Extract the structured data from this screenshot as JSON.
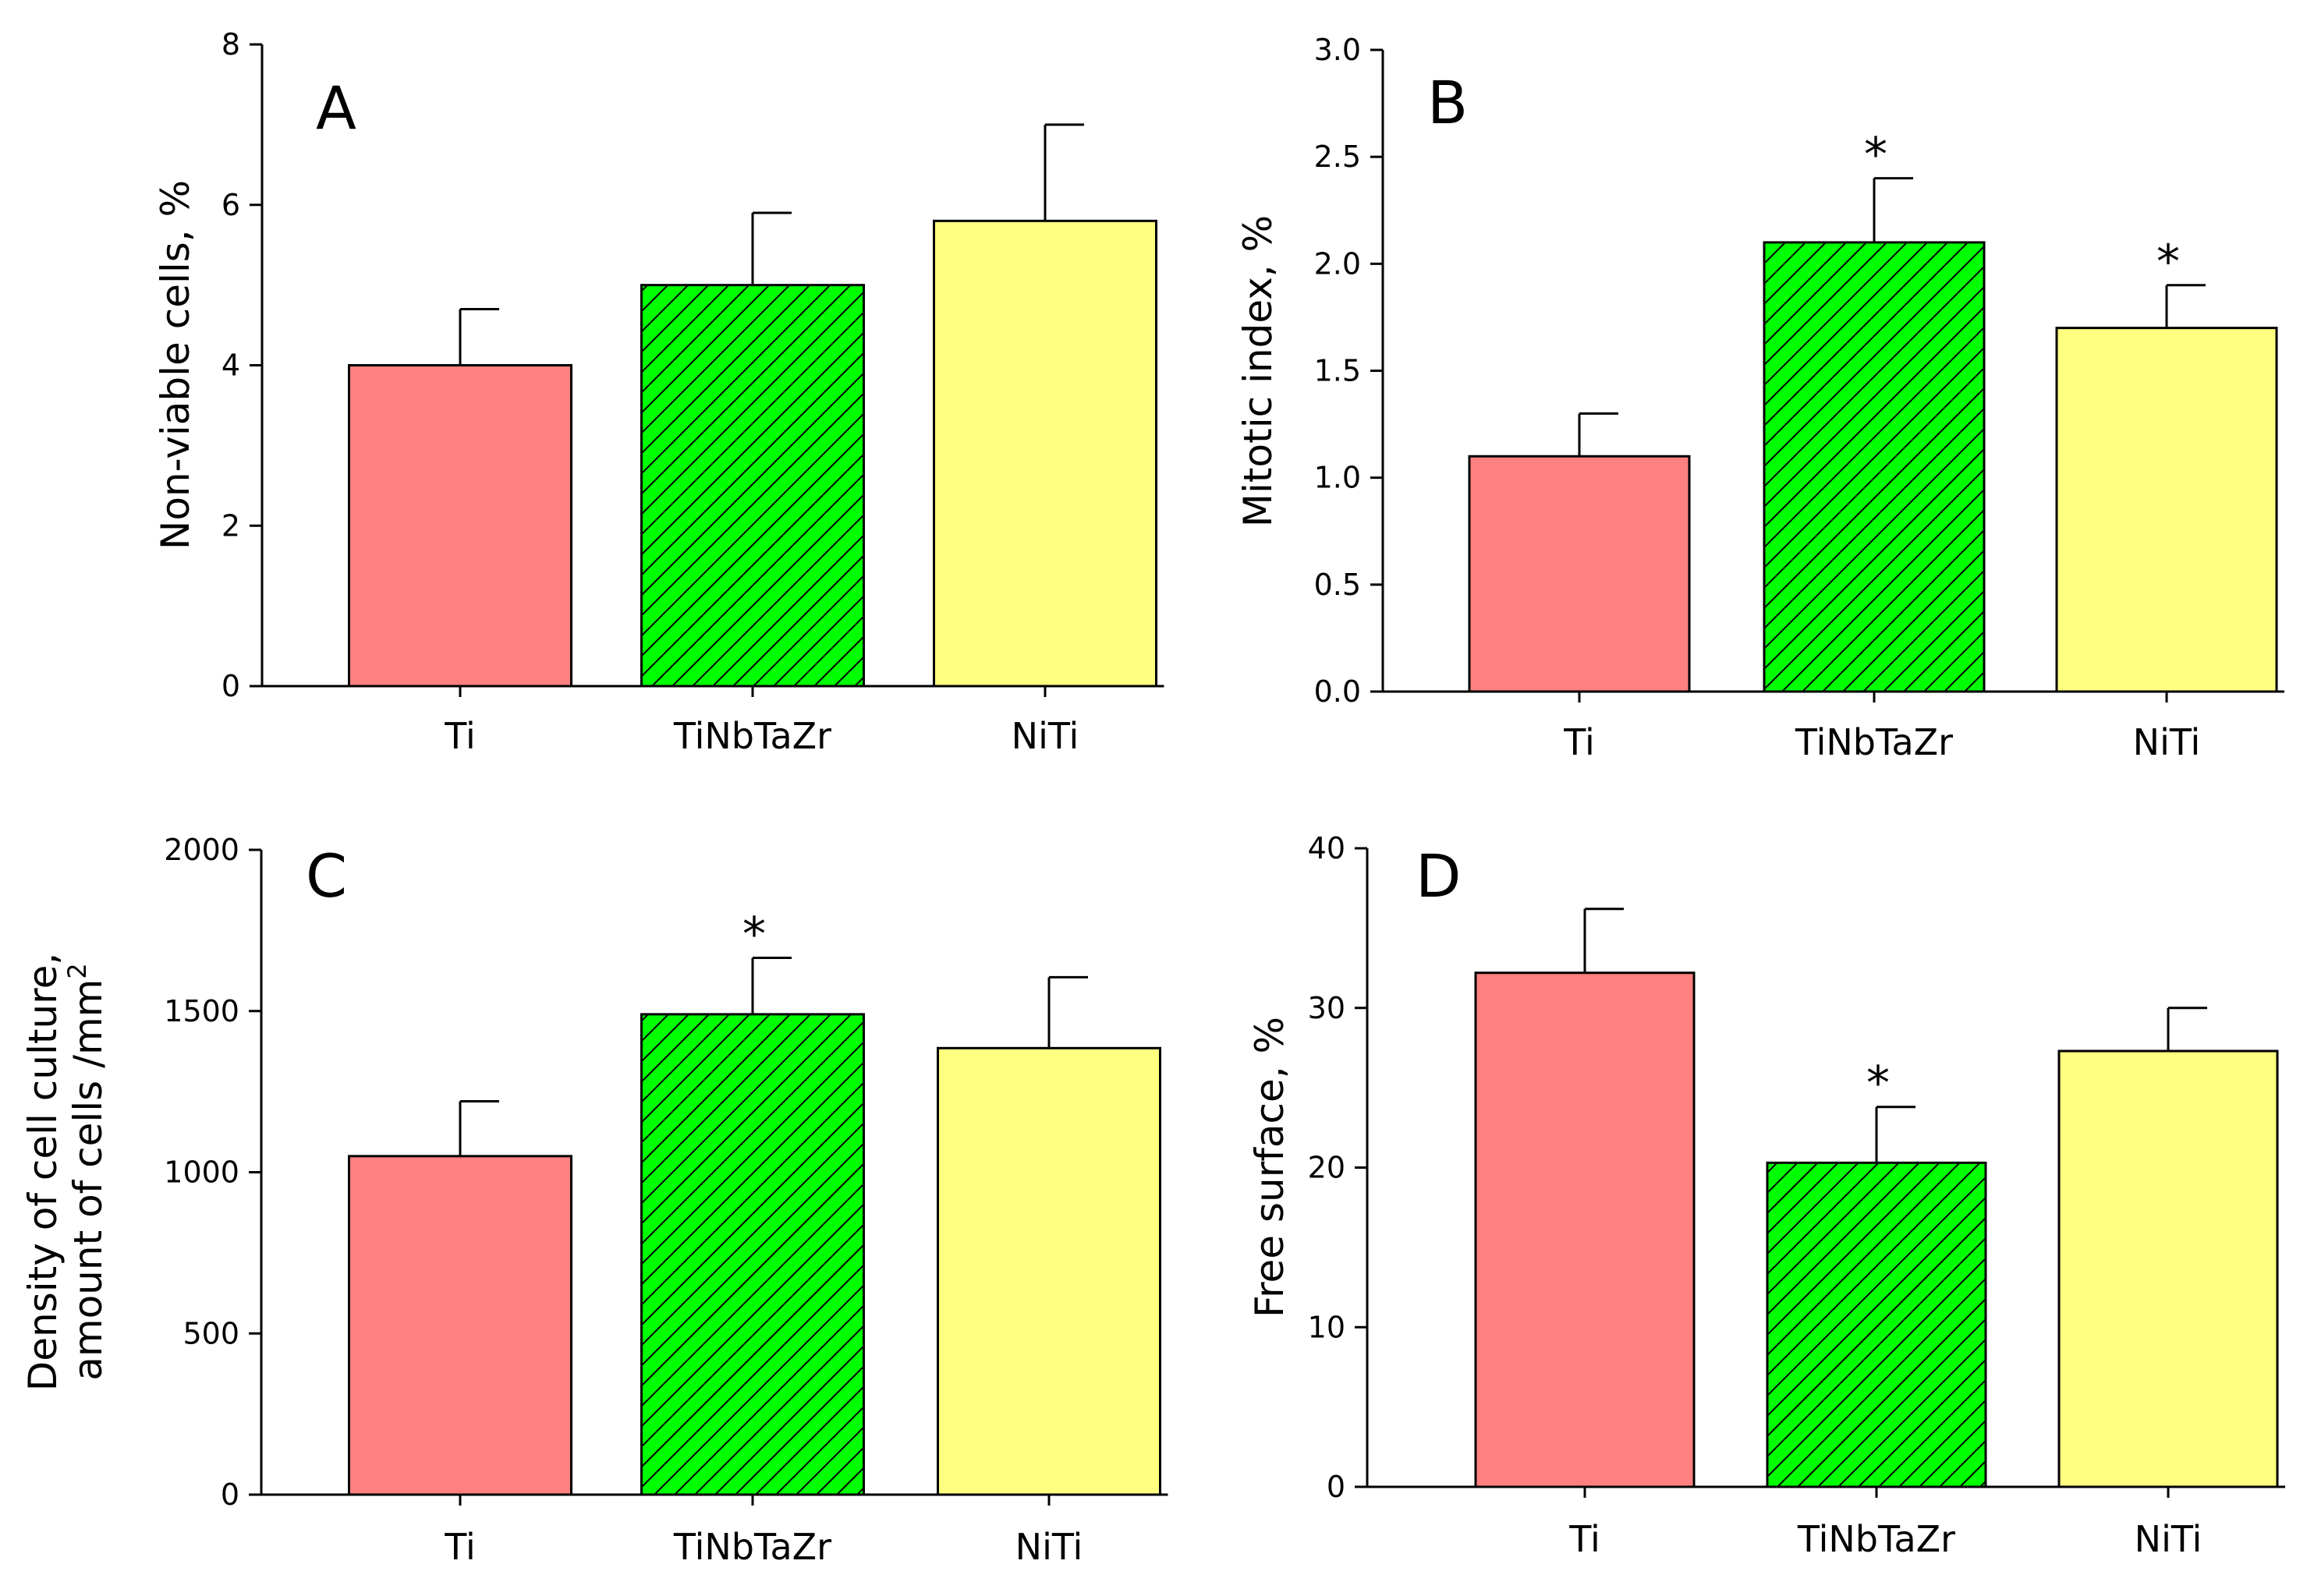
{
  "colors": {
    "Ti": "#ff8080",
    "TiNbTaZr": "#00ff00",
    "TiNbTaZr_hatch": "#000000",
    "NiTi": "#ffff80"
  },
  "chart_data": [
    {
      "type": "bar",
      "panel": "A",
      "categories": [
        "Ti",
        "TiNbTaZr",
        "NiTi"
      ],
      "values": [
        4.0,
        5.0,
        5.8
      ],
      "errors": [
        0.7,
        0.9,
        1.2
      ],
      "significant": [
        "",
        "",
        ""
      ],
      "ylabel": "Non-viable cells, %",
      "ylim": [
        0,
        8
      ],
      "yticks": [
        0,
        2,
        4,
        6,
        8
      ],
      "ytick_labels": [
        "0",
        "2",
        "4",
        "6",
        "8"
      ]
    },
    {
      "type": "bar",
      "panel": "B",
      "categories": [
        "Ti",
        "TiNbTaZr",
        "NiTi"
      ],
      "values": [
        1.1,
        2.1,
        1.7
      ],
      "errors": [
        0.2,
        0.3,
        0.2
      ],
      "significant": [
        "",
        "*",
        "*"
      ],
      "ylabel": "Mitotic index, %",
      "ylim": [
        0,
        3.0
      ],
      "yticks": [
        0,
        0.5,
        1.0,
        1.5,
        2.0,
        2.5,
        3.0
      ],
      "ytick_labels": [
        "0.0",
        "0.5",
        "1.0",
        "1.5",
        "2.0",
        "2.5",
        "3.0"
      ]
    },
    {
      "type": "bar",
      "panel": "C",
      "categories": [
        "Ti",
        "TiNbTaZr",
        "NiTi"
      ],
      "values": [
        1050,
        1490,
        1385
      ],
      "errors": [
        170,
        175,
        220
      ],
      "significant": [
        "",
        "*",
        ""
      ],
      "ylabel_lines": [
        "Density of cell culture,",
        "amount of cells /mm"
      ],
      "ylabel_superscript": "2",
      "ylim": [
        0,
        2000
      ],
      "yticks": [
        0,
        500,
        1000,
        1500,
        2000
      ],
      "ytick_labels": [
        "0",
        "500",
        "1000",
        "1500",
        "2000"
      ]
    },
    {
      "type": "bar",
      "panel": "D",
      "categories": [
        "Ti",
        "TiNbTaZr",
        "NiTi"
      ],
      "values": [
        32.2,
        20.3,
        27.3
      ],
      "errors": [
        4.0,
        3.5,
        2.7
      ],
      "significant": [
        "",
        "*",
        ""
      ],
      "ylabel": "Free surface, %",
      "ylim": [
        0,
        40
      ],
      "yticks": [
        0,
        10,
        20,
        30,
        40
      ],
      "ytick_labels": [
        "0",
        "10",
        "20",
        "30",
        "40"
      ]
    }
  ]
}
